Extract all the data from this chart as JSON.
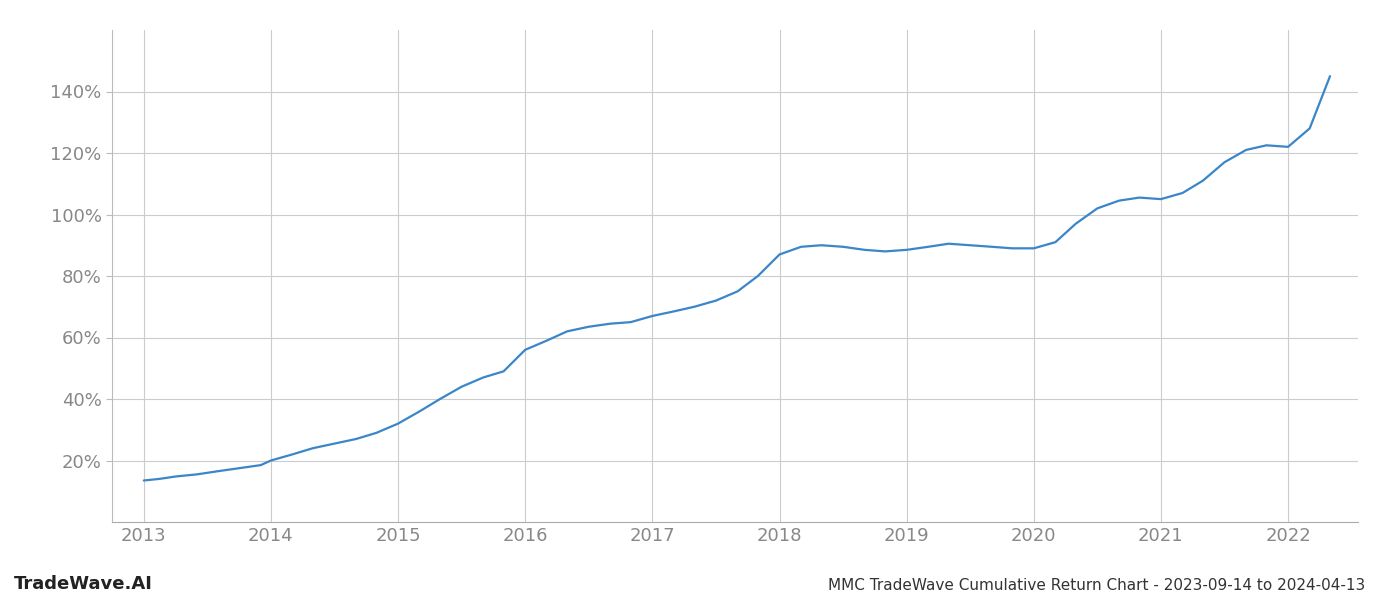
{
  "title": "MMC TradeWave Cumulative Return Chart - 2023-09-14 to 2024-04-13",
  "watermark": "TradeWave.AI",
  "line_color": "#3a86c8",
  "background_color": "#ffffff",
  "grid_color": "#cccccc",
  "x_years": [
    2013,
    2014,
    2015,
    2016,
    2017,
    2018,
    2019,
    2020,
    2021,
    2022
  ],
  "x_data": [
    2013.0,
    2013.12,
    2013.25,
    2013.42,
    2013.58,
    2013.75,
    2013.92,
    2014.0,
    2014.17,
    2014.33,
    2014.5,
    2014.67,
    2014.83,
    2015.0,
    2015.17,
    2015.33,
    2015.5,
    2015.67,
    2015.83,
    2016.0,
    2016.17,
    2016.33,
    2016.5,
    2016.67,
    2016.83,
    2017.0,
    2017.17,
    2017.33,
    2017.5,
    2017.67,
    2017.83,
    2018.0,
    2018.17,
    2018.33,
    2018.5,
    2018.67,
    2018.83,
    2019.0,
    2019.17,
    2019.33,
    2019.5,
    2019.67,
    2019.83,
    2020.0,
    2020.17,
    2020.33,
    2020.5,
    2020.67,
    2020.83,
    2021.0,
    2021.17,
    2021.33,
    2021.5,
    2021.67,
    2021.83,
    2022.0,
    2022.17,
    2022.33
  ],
  "y_data": [
    13.5,
    14.0,
    14.8,
    15.5,
    16.5,
    17.5,
    18.5,
    20.0,
    22.0,
    24.0,
    25.5,
    27.0,
    29.0,
    32.0,
    36.0,
    40.0,
    44.0,
    47.0,
    49.0,
    56.0,
    59.0,
    62.0,
    63.5,
    64.5,
    65.0,
    67.0,
    68.5,
    70.0,
    72.0,
    75.0,
    80.0,
    87.0,
    89.5,
    90.0,
    89.5,
    88.5,
    88.0,
    88.5,
    89.5,
    90.5,
    90.0,
    89.5,
    89.0,
    89.0,
    91.0,
    97.0,
    102.0,
    104.5,
    105.5,
    105.0,
    107.0,
    111.0,
    117.0,
    121.0,
    122.5,
    122.0,
    128.0,
    145.0
  ],
  "ylim": [
    0,
    160
  ],
  "yticks": [
    20,
    40,
    60,
    80,
    100,
    120,
    140
  ],
  "xlim": [
    2012.75,
    2022.55
  ],
  "tick_color": "#888888",
  "title_color": "#333333",
  "watermark_color": "#222222",
  "tick_fontsize": 13,
  "title_fontsize": 11,
  "watermark_fontsize": 13,
  "line_width": 1.6
}
